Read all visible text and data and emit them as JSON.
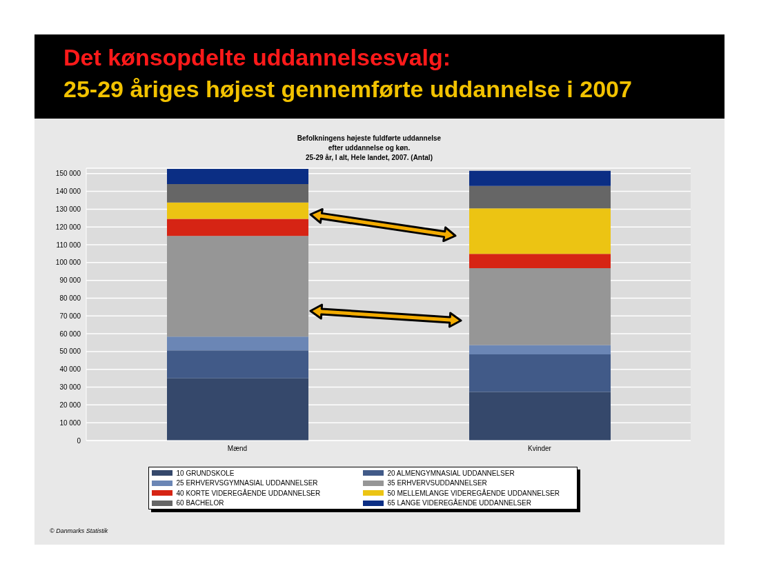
{
  "chart_data": {
    "type": "bar",
    "title": "Det kønsopdelte uddannelsesvalg:",
    "subtitle": "25-29 åriges højest gennemførte uddannelse i 2007",
    "annotations": [
      "Befolkningens højeste fuldførte uddannelse\nefter uddannelse og køn.\n25-29 år, I alt, Hele landet, 2007. (Antal)",
      "© Danmarks Statistik"
    ],
    "categories": [
      "Mænd",
      "Kvinder"
    ],
    "stacked": true,
    "series": [
      {
        "name": "10 GRUNDSKOLE",
        "color": "#35486b",
        "values": [
          35000,
          27300
        ]
      },
      {
        "name": "20 ALMENGYMNASIAL UDDANNELSER",
        "color": "#415a88",
        "values": [
          15600,
          21100
        ]
      },
      {
        "name": "25 ERHVERVSGYMNASIAL UDDANNELSER",
        "color": "#6b86b5",
        "values": [
          7800,
          5200
        ]
      },
      {
        "name": "35 ERHVERVSUDDANNELSER",
        "color": "#969696",
        "values": [
          56500,
          43200
        ]
      },
      {
        "name": "40 KORTE VIDEREGÅENDE UDDANNELSER",
        "color": "#d62414",
        "values": [
          9600,
          8100
        ]
      },
      {
        "name": "50 MELLEMLANGE VIDEREGÅENDE UDDANNELSER",
        "color": "#ecc413",
        "values": [
          9200,
          25500
        ]
      },
      {
        "name": "60 BACHELOR",
        "color": "#666666",
        "values": [
          10400,
          12600
        ]
      },
      {
        "name": "65 LANGE VIDEREGÅENDE UDDANNELSER",
        "color": "#0b2e84",
        "values": [
          8500,
          8500
        ]
      }
    ],
    "ylim": [
      0,
      153000
    ],
    "yticks": [
      {
        "value": 0,
        "label": "0"
      },
      {
        "value": 10000,
        "label": "10 000"
      },
      {
        "value": 20000,
        "label": "20 000"
      },
      {
        "value": 30000,
        "label": "30 000"
      },
      {
        "value": 40000,
        "label": "40 000"
      },
      {
        "value": 50000,
        "label": "50 000"
      },
      {
        "value": 60000,
        "label": "60 000"
      },
      {
        "value": 70000,
        "label": "70 000"
      },
      {
        "value": 80000,
        "label": "80 000"
      },
      {
        "value": 90000,
        "label": "90 000"
      },
      {
        "value": 100000,
        "label": "100 000"
      },
      {
        "value": 110000,
        "label": "110 000"
      },
      {
        "value": 120000,
        "label": "120 000"
      },
      {
        "value": 130000,
        "label": "130 000"
      },
      {
        "value": 140000,
        "label": "140 000"
      },
      {
        "value": 150000,
        "label": "150 000"
      }
    ],
    "grid": "y",
    "legend": "bottom"
  }
}
